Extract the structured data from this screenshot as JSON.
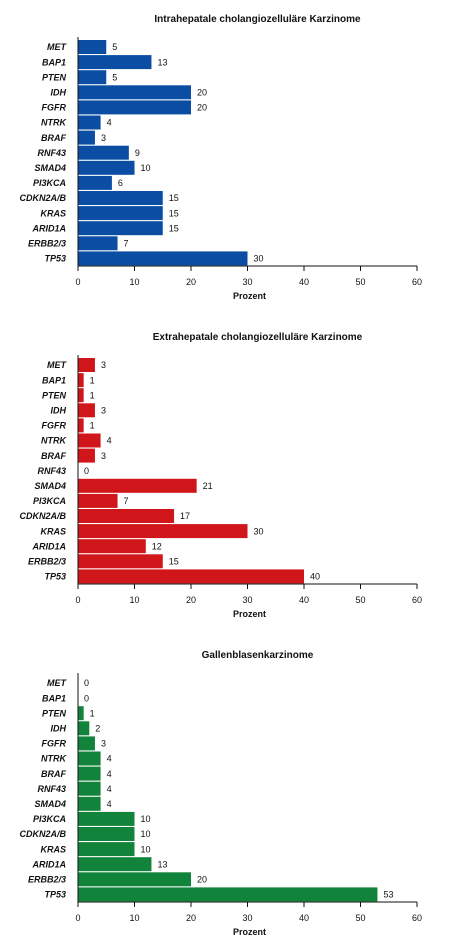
{
  "chart_data": [
    {
      "type": "bar",
      "orientation": "horizontal",
      "title": "Intrahepatale cholangiozelluläre Karzinome",
      "xlabel": "Prozent",
      "ylabel": "",
      "xlim": [
        0,
        60
      ],
      "xticks": [
        "0",
        "10",
        "20",
        "30",
        "40",
        "50",
        "60"
      ],
      "color": "#0a4da2",
      "categories": [
        "MET",
        "BAP1",
        "PTEN",
        "IDH",
        "FGFR",
        "NTRK",
        "BRAF",
        "RNF43",
        "SMAD4",
        "PI3KCA",
        "CDKN2A/B",
        "KRAS",
        "ARID1A",
        "ERBB2/3",
        "TP53"
      ],
      "values": [
        5,
        13,
        5,
        20,
        20,
        4,
        3,
        9,
        10,
        6,
        15,
        15,
        15,
        7,
        30
      ],
      "grid": false
    },
    {
      "type": "bar",
      "orientation": "horizontal",
      "title": "Extrahepatale cholangiozelluläre Karzinome",
      "xlabel": "Prozent",
      "ylabel": "",
      "xlim": [
        0,
        60
      ],
      "xticks": [
        "0",
        "10",
        "20",
        "30",
        "40",
        "50",
        "60"
      ],
      "color": "#d0161b",
      "categories": [
        "MET",
        "BAP1",
        "PTEN",
        "IDH",
        "FGFR",
        "NTRK",
        "BRAF",
        "RNF43",
        "SMAD4",
        "PI3KCA",
        "CDKN2A/B",
        "KRAS",
        "ARID1A",
        "ERBB2/3",
        "TP53"
      ],
      "values": [
        3,
        1,
        1,
        3,
        1,
        4,
        3,
        0,
        21,
        7,
        17,
        30,
        12,
        15,
        40
      ],
      "grid": false
    },
    {
      "type": "bar",
      "orientation": "horizontal",
      "title": "Gallenblasenkarzinome",
      "xlabel": "Prozent",
      "ylabel": "",
      "xlim": [
        0,
        60
      ],
      "xticks": [
        "0",
        "10",
        "20",
        "30",
        "40",
        "50",
        "60"
      ],
      "color": "#12833a",
      "categories": [
        "MET",
        "BAP1",
        "PTEN",
        "IDH",
        "FGFR",
        "NTRK",
        "BRAF",
        "RNF43",
        "SMAD4",
        "PI3KCA",
        "CDKN2A/B",
        "KRAS",
        "ARID1A",
        "ERBB2/3",
        "TP53"
      ],
      "values": [
        0,
        0,
        1,
        2,
        3,
        4,
        4,
        4,
        4,
        10,
        10,
        10,
        13,
        20,
        53
      ],
      "grid": false
    }
  ]
}
